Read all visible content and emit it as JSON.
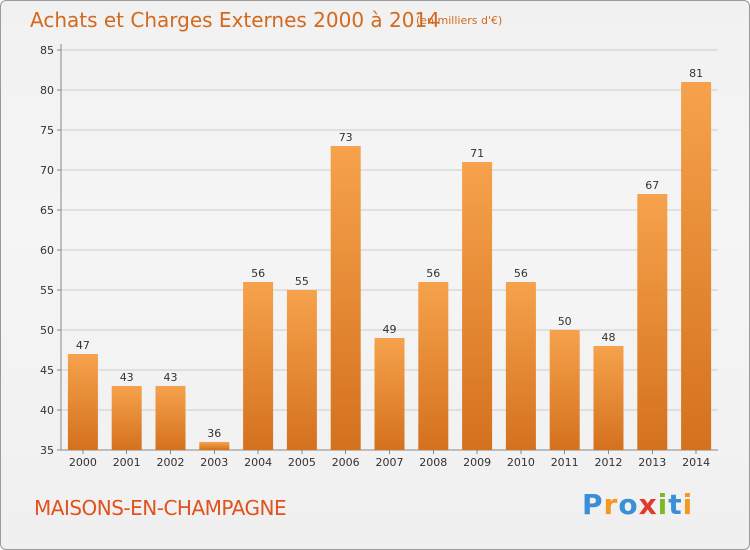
{
  "header": {
    "title": "Achats et Charges Externes 2000 à 2014",
    "unit": "(en milliers d'€)"
  },
  "footer": {
    "commune": "MAISONS-EN-CHAMPAGNE",
    "logo_text": "Proxiti"
  },
  "colors": {
    "bar_light": "#f6a24c",
    "bar_dark": "#d4711e",
    "title": "#d2691e",
    "commune": "#e0521e",
    "grid": "#cccccc"
  },
  "chart_data": {
    "type": "bar",
    "title": "Achats et Charges Externes 2000 à 2014",
    "subtitle": "(en milliers d'€)",
    "xlabel": "",
    "ylabel": "",
    "categories": [
      "2000",
      "2001",
      "2002",
      "2003",
      "2004",
      "2005",
      "2006",
      "2007",
      "2008",
      "2009",
      "2010",
      "2011",
      "2012",
      "2013",
      "2014"
    ],
    "values": [
      47,
      43,
      43,
      36,
      56,
      55,
      73,
      49,
      56,
      71,
      56,
      50,
      48,
      67,
      81
    ],
    "ylim": [
      35,
      85
    ],
    "yticks": [
      35,
      40,
      45,
      50,
      55,
      60,
      65,
      70,
      75,
      80,
      85
    ],
    "grid": true,
    "legend": "none"
  }
}
